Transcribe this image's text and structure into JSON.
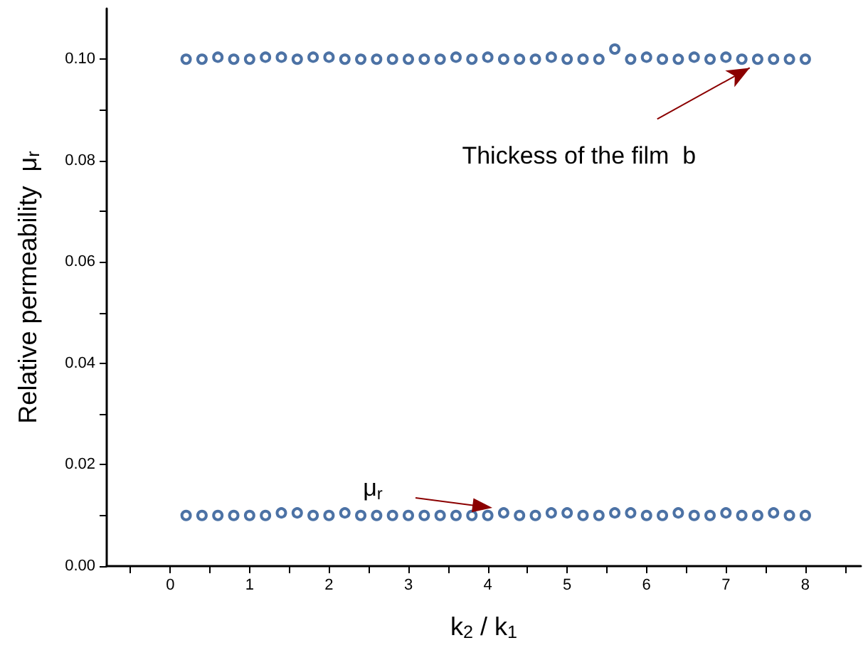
{
  "chart_data": {
    "type": "scatter",
    "xlabel": "k$_{2}$ / k$_{1}$",
    "ylabel": "Relative permeability  μ$_{r}$",
    "x": [
      0.2,
      0.4,
      0.6,
      0.8,
      1.0,
      1.2,
      1.4,
      1.6,
      1.8,
      2.0,
      2.2,
      2.4,
      2.6,
      2.8,
      3.0,
      3.2,
      3.4,
      3.6,
      3.8,
      4.0,
      4.2,
      4.4,
      4.6,
      4.8,
      5.0,
      5.2,
      5.4,
      5.6,
      5.8,
      6.0,
      6.2,
      6.4,
      6.6,
      6.8,
      7.0,
      7.2,
      7.4,
      7.6,
      7.8,
      8.0
    ],
    "series": [
      {
        "color": "#1f4f8f",
        "values": [
          0.1,
          0.1,
          0.1004,
          0.1,
          0.1,
          0.1004,
          0.1004,
          0.1,
          0.1004,
          0.1004,
          0.1,
          0.1,
          0.1,
          0.1,
          0.1,
          0.1,
          0.1,
          0.1004,
          0.1,
          0.1004,
          0.1,
          0.1,
          0.1,
          0.1004,
          0.1,
          0.1,
          0.1,
          0.102,
          0.1,
          0.1004,
          0.1,
          0.1,
          0.1004,
          0.1,
          0.1004,
          0.1,
          0.1,
          0.1,
          0.1,
          0.1
        ]
      },
      {
        "color": "#1f4f8f",
        "values": [
          0.01,
          0.01,
          0.01,
          0.01,
          0.01,
          0.01,
          0.0105,
          0.0105,
          0.01,
          0.01,
          0.0105,
          0.01,
          0.01,
          0.01,
          0.01,
          0.01,
          0.01,
          0.01,
          0.01,
          0.01,
          0.0105,
          0.01,
          0.01,
          0.0105,
          0.0105,
          0.01,
          0.01,
          0.0105,
          0.0105,
          0.01,
          0.01,
          0.0105,
          0.01,
          0.01,
          0.0105,
          0.01,
          0.01,
          0.0105,
          0.01,
          0.01
        ]
      }
    ],
    "marker": "circle",
    "xlim": [
      -0.8,
      8.7
    ],
    "xticks": [
      {
        "value": -0.5,
        "label": null
      },
      0,
      {
        "value": 0.5,
        "label": null
      },
      1,
      {
        "value": 1.5,
        "label": null
      },
      2,
      {
        "value": 2.5,
        "label": null
      },
      3,
      {
        "value": 3.5,
        "label": null
      },
      4,
      {
        "value": 4.5,
        "label": null
      },
      5,
      {
        "value": 5.5,
        "label": null
      },
      6,
      {
        "value": 6.5,
        "label": null
      },
      7,
      {
        "value": 7.5,
        "label": null
      },
      8,
      {
        "value": 8.5,
        "label": null
      }
    ],
    "ylim": [
      0,
      0.11
    ],
    "yticks": [
      {
        "value": 0,
        "label": "0.00"
      },
      {
        "value": 0.01,
        "label": null
      },
      0.02,
      {
        "value": 0.03,
        "label": null
      },
      0.04,
      {
        "value": 0.05,
        "label": null
      },
      0.06,
      {
        "value": 0.07,
        "label": null
      },
      0.08,
      {
        "value": 0.09,
        "label": null
      },
      {
        "value": 0.1,
        "label": "0.10"
      }
    ],
    "grid": false,
    "annotations": [
      {
        "text": "Thickess of the film  b",
        "x": 7.3,
        "y": 0.0983
      },
      "μ$_{r}$"
    ]
  }
}
